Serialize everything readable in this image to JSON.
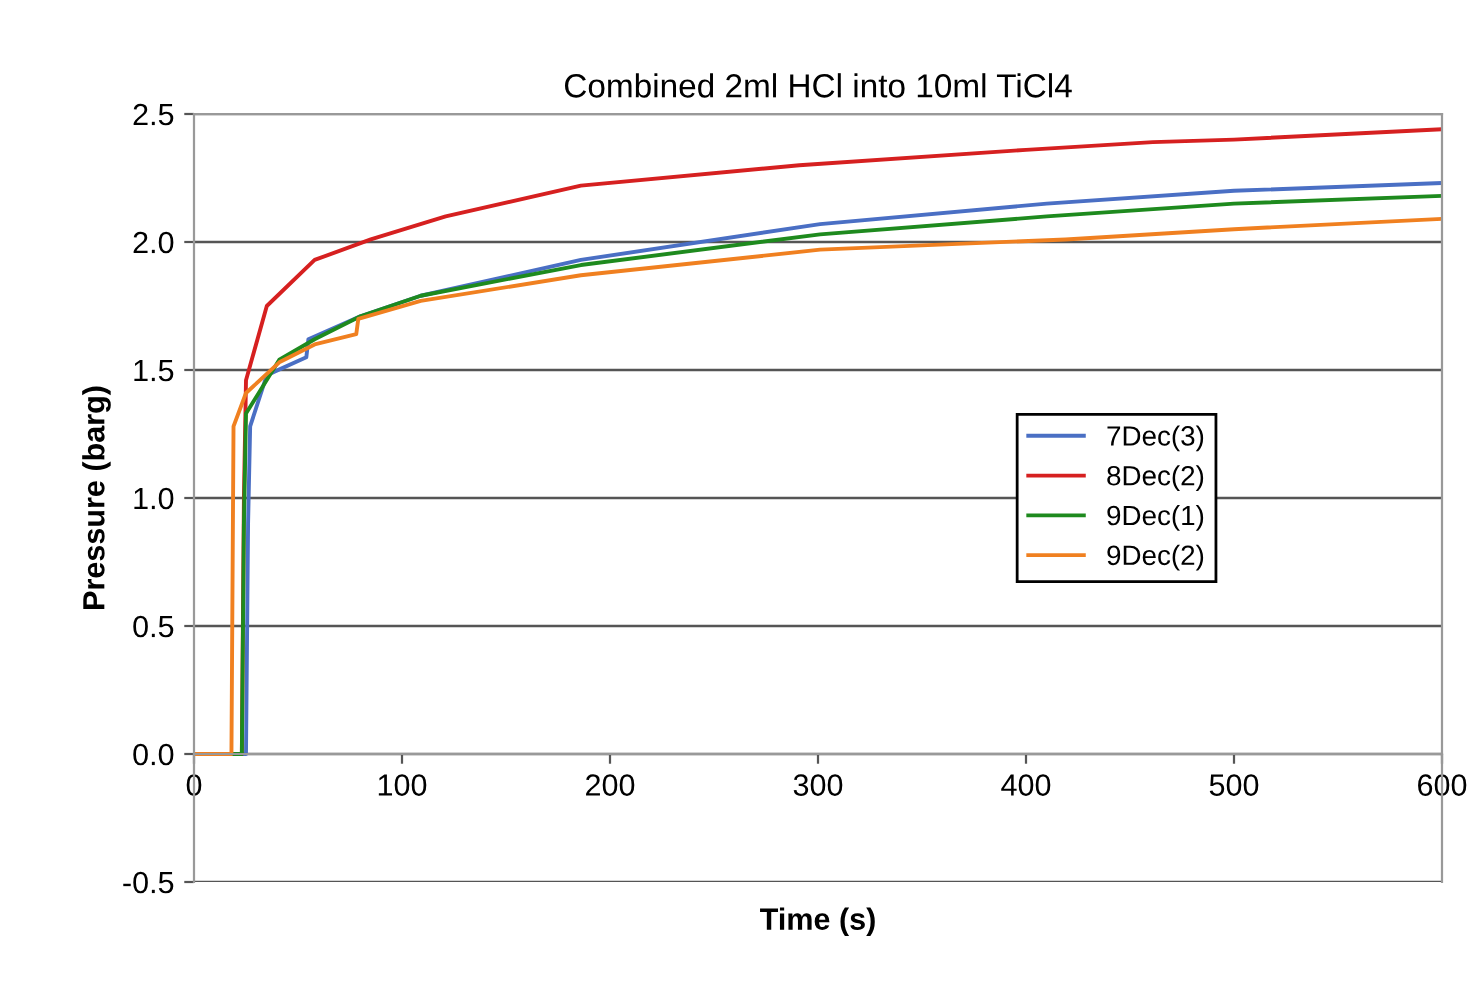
{
  "chart_data": {
    "type": "line",
    "title": "Combined 2ml HCl into 10ml TiCl4",
    "xlabel": "Time (s)",
    "ylabel": "Pressure (barg)",
    "xlim": [
      0,
      600
    ],
    "xticks": [
      0,
      100,
      200,
      300,
      400,
      500,
      600
    ],
    "ylim": [
      -0.5,
      2.5
    ],
    "yticks": [
      -0.5,
      {
        "value": 0,
        "label": "0.0"
      },
      0.5,
      {
        "value": 1,
        "label": "1.0"
      },
      1.5,
      {
        "value": 2,
        "label": "2.0"
      },
      2.5
    ],
    "grid": "y",
    "legend": "right",
    "line_style": "solid",
    "series": [
      {
        "name": "7Dec(3)",
        "color": "#4a6fc4",
        "x": [
          0,
          25,
          26,
          27,
          35,
          54,
          55,
          80,
          109,
          186,
          301,
          410,
          500,
          599
        ],
        "values": [
          0,
          0,
          0.9,
          1.28,
          1.48,
          1.55,
          1.62,
          1.71,
          1.79,
          1.93,
          2.07,
          2.15,
          2.2,
          2.23
        ]
      },
      {
        "name": "8Dec(2)",
        "color": "#d62020",
        "x": [
          0,
          23,
          24,
          25,
          35,
          58,
          85,
          121,
          186,
          291,
          400,
          461,
          500,
          599
        ],
        "values": [
          0,
          0,
          1.0,
          1.46,
          1.75,
          1.93,
          2.01,
          2.1,
          2.22,
          2.3,
          2.36,
          2.39,
          2.4,
          2.44
        ]
      },
      {
        "name": "9Dec(1)",
        "color": "#1e8a1e",
        "x": [
          0,
          23,
          24,
          25,
          41,
          58,
          80,
          109,
          186,
          301,
          410,
          500,
          599
        ],
        "values": [
          0,
          0,
          0.9,
          1.33,
          1.54,
          1.62,
          1.71,
          1.79,
          1.91,
          2.03,
          2.1,
          2.15,
          2.18
        ]
      },
      {
        "name": "9Dec(2)",
        "color": "#f08020",
        "x": [
          0,
          18,
          19,
          25,
          41,
          58,
          78,
          79,
          109,
          186,
          301,
          419,
          500,
          599
        ],
        "values": [
          0,
          0,
          1.28,
          1.41,
          1.53,
          1.6,
          1.64,
          1.7,
          1.77,
          1.87,
          1.97,
          2.01,
          2.05,
          2.09
        ]
      }
    ]
  }
}
